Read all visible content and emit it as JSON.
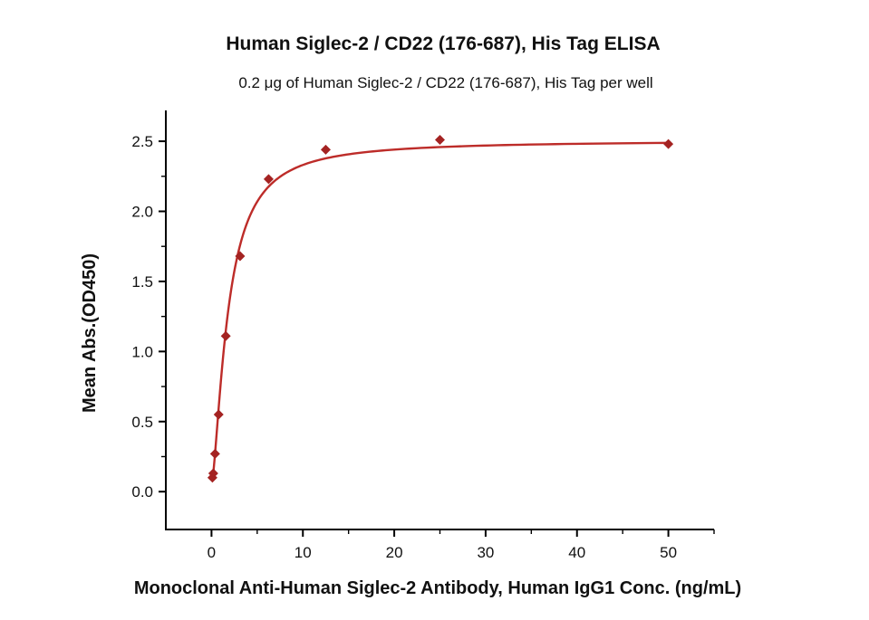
{
  "chart_data": {
    "type": "scatter",
    "title": "Human Siglec-2 / CD22 (176-687), His Tag ELISA",
    "subtitle": "0.2 μg of Human Siglec-2 / CD22 (176-687), His Tag per well",
    "xlabel": "Monoclonal Anti-Human Siglec-2 Antibody, Human IgG1 Conc. (ng/mL)",
    "ylabel": "Mean Abs.(OD450)",
    "points": {
      "x": [
        0.098,
        0.195,
        0.39,
        0.78,
        1.5625,
        3.125,
        6.25,
        12.5,
        25,
        50
      ],
      "y": [
        0.1,
        0.13,
        0.27,
        0.55,
        1.11,
        1.68,
        2.23,
        2.44,
        2.51,
        2.48
      ]
    },
    "fit_curve": {
      "model": "4PL",
      "min": 0.05,
      "max": 2.505,
      "ec50": 1.8,
      "hill": 1.5,
      "x_start": 0.098,
      "x_end": 50
    },
    "axes": {
      "xlim": [
        -5,
        55
      ],
      "ylim": [
        -0.27,
        2.72
      ],
      "xticks": [
        0,
        10,
        20,
        30,
        40,
        50
      ],
      "xtick_labels": [
        "0",
        "10",
        "20",
        "30",
        "40",
        "50"
      ],
      "x_minor_step": 5,
      "x_minor_max": 55,
      "yticks": [
        0,
        0.5,
        1,
        1.5,
        2,
        2.5
      ],
      "ytick_labels": [
        "0.0",
        "0.5",
        "1.0",
        "1.5",
        "2.0",
        "2.5"
      ],
      "y_minor_step": 0.25,
      "grid": false,
      "legend": "none"
    },
    "colors": {
      "line": "#bd2c29",
      "marker": "#a42322",
      "axis": "#000000",
      "text": "#111111"
    }
  }
}
